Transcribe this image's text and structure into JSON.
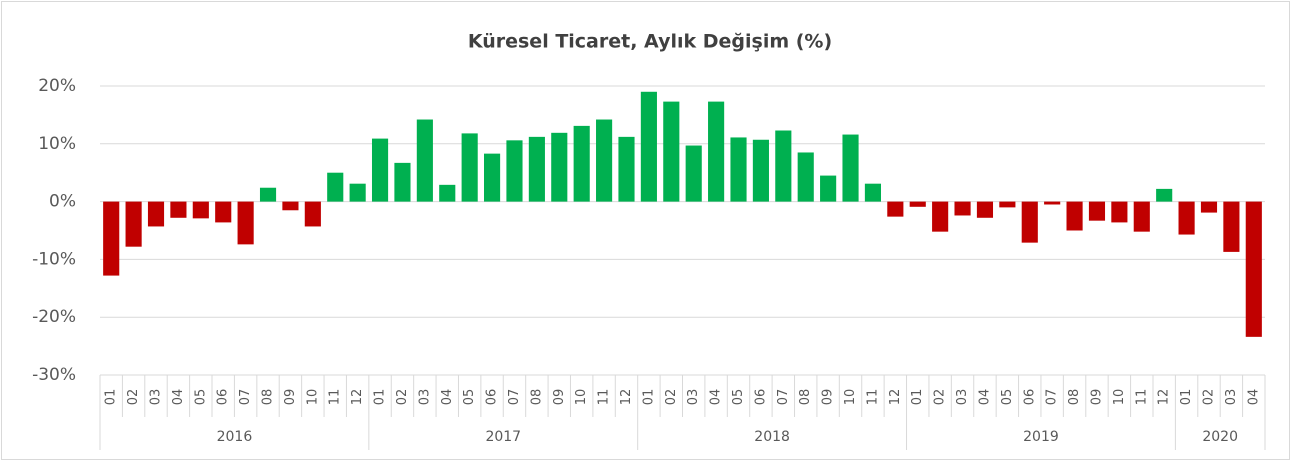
{
  "chart_data": {
    "type": "bar",
    "title": "Küresel Ticaret, Aylık Değişim (%)",
    "groups": [
      {
        "name": "2016",
        "categories": [
          "01",
          "02",
          "03",
          "04",
          "05",
          "06",
          "07",
          "08",
          "09",
          "10",
          "11",
          "12"
        ]
      },
      {
        "name": "2017",
        "categories": [
          "01",
          "02",
          "03",
          "04",
          "05",
          "06",
          "07",
          "08",
          "09",
          "10",
          "11",
          "12"
        ]
      },
      {
        "name": "2018",
        "categories": [
          "01",
          "02",
          "03",
          "04",
          "05",
          "06",
          "07",
          "08",
          "09",
          "10",
          "11",
          "12"
        ]
      },
      {
        "name": "2019",
        "categories": [
          "01",
          "02",
          "03",
          "04",
          "05",
          "06",
          "07",
          "08",
          "09",
          "10",
          "11",
          "12"
        ]
      },
      {
        "name": "2020",
        "categories": [
          "01",
          "02",
          "03",
          "04"
        ]
      }
    ],
    "values": [
      -12.8,
      -7.8,
      -4.3,
      -2.8,
      -2.9,
      -3.6,
      -7.4,
      2.4,
      -1.5,
      -4.3,
      5.0,
      3.1,
      10.9,
      6.7,
      14.2,
      2.9,
      11.8,
      8.3,
      10.6,
      11.2,
      11.9,
      13.1,
      14.2,
      11.2,
      19.0,
      17.3,
      9.7,
      17.3,
      11.1,
      10.7,
      12.3,
      8.5,
      4.5,
      11.6,
      3.1,
      -2.6,
      -0.9,
      -5.2,
      -2.4,
      -2.8,
      -1.0,
      -7.1,
      -0.5,
      -5.0,
      -3.3,
      -3.6,
      -5.2,
      2.2,
      -5.7,
      -1.9,
      -8.7,
      -23.4
    ],
    "positive_color": "#00b050",
    "negative_color": "#c00000",
    "ylim": [
      -30,
      20
    ],
    "yticks": [
      {
        "value": -30,
        "label": "-30%"
      },
      {
        "value": -20,
        "label": "-20%"
      },
      {
        "value": -10,
        "label": "-10%"
      },
      {
        "value": 0,
        "label": "0%"
      },
      {
        "value": 10,
        "label": "10%"
      },
      {
        "value": 20,
        "label": "20%"
      }
    ],
    "grid": true
  }
}
